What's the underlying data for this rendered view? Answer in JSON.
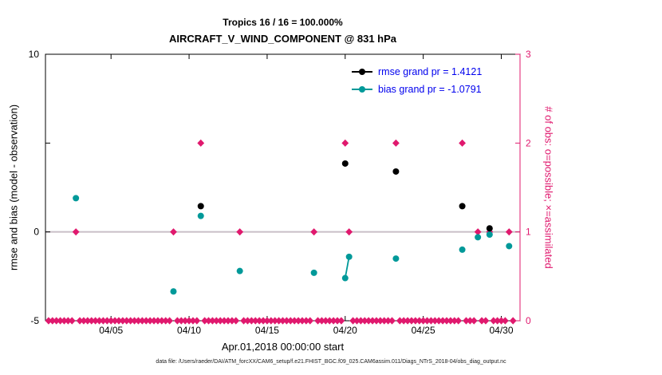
{
  "figure": {
    "caption": "data file: /Users/raeder/DAI/ATM_forcXX/CAM6_setup/f.e21.FHIST_BGC.f09_025.CAM6assim.011/Diags_NTrS_2018-04/obs_diag_output.nc"
  },
  "chart_data": {
    "type": "scatter",
    "title": "Tropics 16 / 16 = 100.000%",
    "subtitle": "AIRCRAFT_V_WIND_COMPONENT @ 831 hPa",
    "xlabel": "Apr.01,2018 00:00:00 start",
    "ylabel_left": "rmse and bias (model - observation)",
    "ylabel_right": "# of obs: o=possible; ×=assimilated",
    "xlim": [
      0.8,
      31.2
    ],
    "ylim_left": [
      -5,
      10
    ],
    "ylim_right": [
      0,
      3
    ],
    "grid": false,
    "legend_position": "top-right-inside",
    "colors": {
      "rmse": "#000000",
      "bias": "#009999",
      "obs_count": "#e0196e",
      "legend_text": "#0000ee",
      "zero_line": "#c9bfc7"
    },
    "xticks": [
      {
        "x": 5,
        "label": "04/05"
      },
      {
        "x": 10,
        "label": "04/10"
      },
      {
        "x": 15,
        "label": "04/15"
      },
      {
        "x": 20,
        "label": "04/20"
      },
      {
        "x": 25,
        "label": "04/25"
      },
      {
        "x": 30,
        "label": "04/30"
      }
    ],
    "yticks_left": [
      {
        "v": -5,
        "label": "-5"
      },
      {
        "v": 0,
        "label": "0"
      },
      {
        "v": 5,
        "label": ""
      },
      {
        "v": 10,
        "label": "10"
      }
    ],
    "yticks_right": [
      {
        "v": 0,
        "label": "0"
      },
      {
        "v": 1,
        "label": "1"
      },
      {
        "v": 2,
        "label": "2"
      },
      {
        "v": 3,
        "label": "3"
      }
    ],
    "legend": [
      {
        "name": "rmse",
        "label": "rmse grand pr = 1.4121",
        "color": "#000000"
      },
      {
        "name": "bias",
        "label": "bias grand pr = -1.0791",
        "color": "#009999"
      }
    ],
    "series": [
      {
        "name": "bias",
        "marker": "circle",
        "color": "#009999",
        "points": [
          [
            2.75,
            1.9
          ],
          [
            9.0,
            -3.35
          ],
          [
            10.75,
            0.9
          ],
          [
            13.25,
            -2.2
          ],
          [
            18.0,
            -2.3
          ],
          [
            20.0,
            -2.6
          ],
          [
            20.25,
            -1.4
          ],
          [
            23.25,
            -1.5
          ],
          [
            27.5,
            -1.0
          ],
          [
            28.5,
            -0.3
          ],
          [
            29.25,
            -0.15
          ],
          [
            30.5,
            -0.8
          ]
        ],
        "segments": [
          [
            [
              20.0,
              -2.6
            ],
            [
              20.25,
              -1.4
            ]
          ]
        ]
      },
      {
        "name": "rmse",
        "marker": "circle",
        "color": "#000000",
        "points": [
          [
            10.75,
            1.45
          ],
          [
            20.0,
            3.85
          ],
          [
            23.25,
            3.4
          ],
          [
            27.5,
            1.45
          ],
          [
            29.25,
            0.2
          ]
        ],
        "segments": []
      }
    ],
    "obs_counts": {
      "axis": "right",
      "marker": "diamond",
      "nonzero": [
        {
          "x": 2.75,
          "count": 1
        },
        {
          "x": 9.0,
          "count": 1
        },
        {
          "x": 10.75,
          "count": 2
        },
        {
          "x": 13.25,
          "count": 1
        },
        {
          "x": 18.0,
          "count": 1
        },
        {
          "x": 20.0,
          "count": 2
        },
        {
          "x": 20.25,
          "count": 1
        },
        {
          "x": 23.25,
          "count": 2
        },
        {
          "x": 27.5,
          "count": 2
        },
        {
          "x": 28.5,
          "count": 1
        },
        {
          "x": 29.25,
          "count": 1
        },
        {
          "x": 30.5,
          "count": 1
        }
      ],
      "zero_row": {
        "start": 1.0,
        "end": 30.75,
        "step": 0.25
      }
    }
  }
}
